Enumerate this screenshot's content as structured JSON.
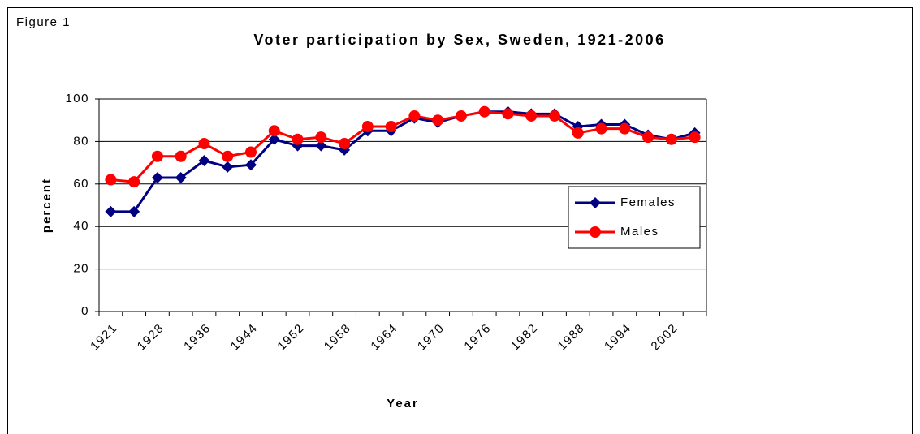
{
  "figure_label": "Figure 1",
  "chart_data": {
    "type": "line",
    "title": "Voter participation by Sex, Sweden, 1921-2006",
    "x_label": "Year",
    "y_label": "percent",
    "categories": [
      "1921",
      null,
      "1928",
      null,
      "1936",
      null,
      "1944",
      null,
      "1952",
      null,
      "1958",
      null,
      "1964",
      null,
      "1970",
      null,
      "1976",
      null,
      "1982",
      null,
      "1988",
      null,
      "1994",
      null,
      "2002",
      null
    ],
    "series": [
      {
        "name": "Females",
        "color": "#000080",
        "marker": "diamond",
        "values": [
          47,
          47,
          63,
          63,
          71,
          68,
          69,
          81,
          78,
          78,
          76,
          85,
          85,
          91,
          89,
          92,
          94,
          94,
          93,
          93,
          87,
          88,
          88,
          83,
          81,
          84
        ]
      },
      {
        "name": "Males",
        "color": "#ff0000",
        "marker": "circle",
        "values": [
          62,
          61,
          73,
          73,
          79,
          73,
          75,
          85,
          81,
          82,
          79,
          87,
          87,
          92,
          90,
          92,
          94,
          93,
          92,
          92,
          84,
          86,
          86,
          82,
          81,
          82
        ]
      }
    ],
    "ylim": [
      0,
      100
    ],
    "yticks": [
      0,
      20,
      40,
      60,
      80,
      100
    ],
    "grid": true,
    "legend": "right"
  }
}
